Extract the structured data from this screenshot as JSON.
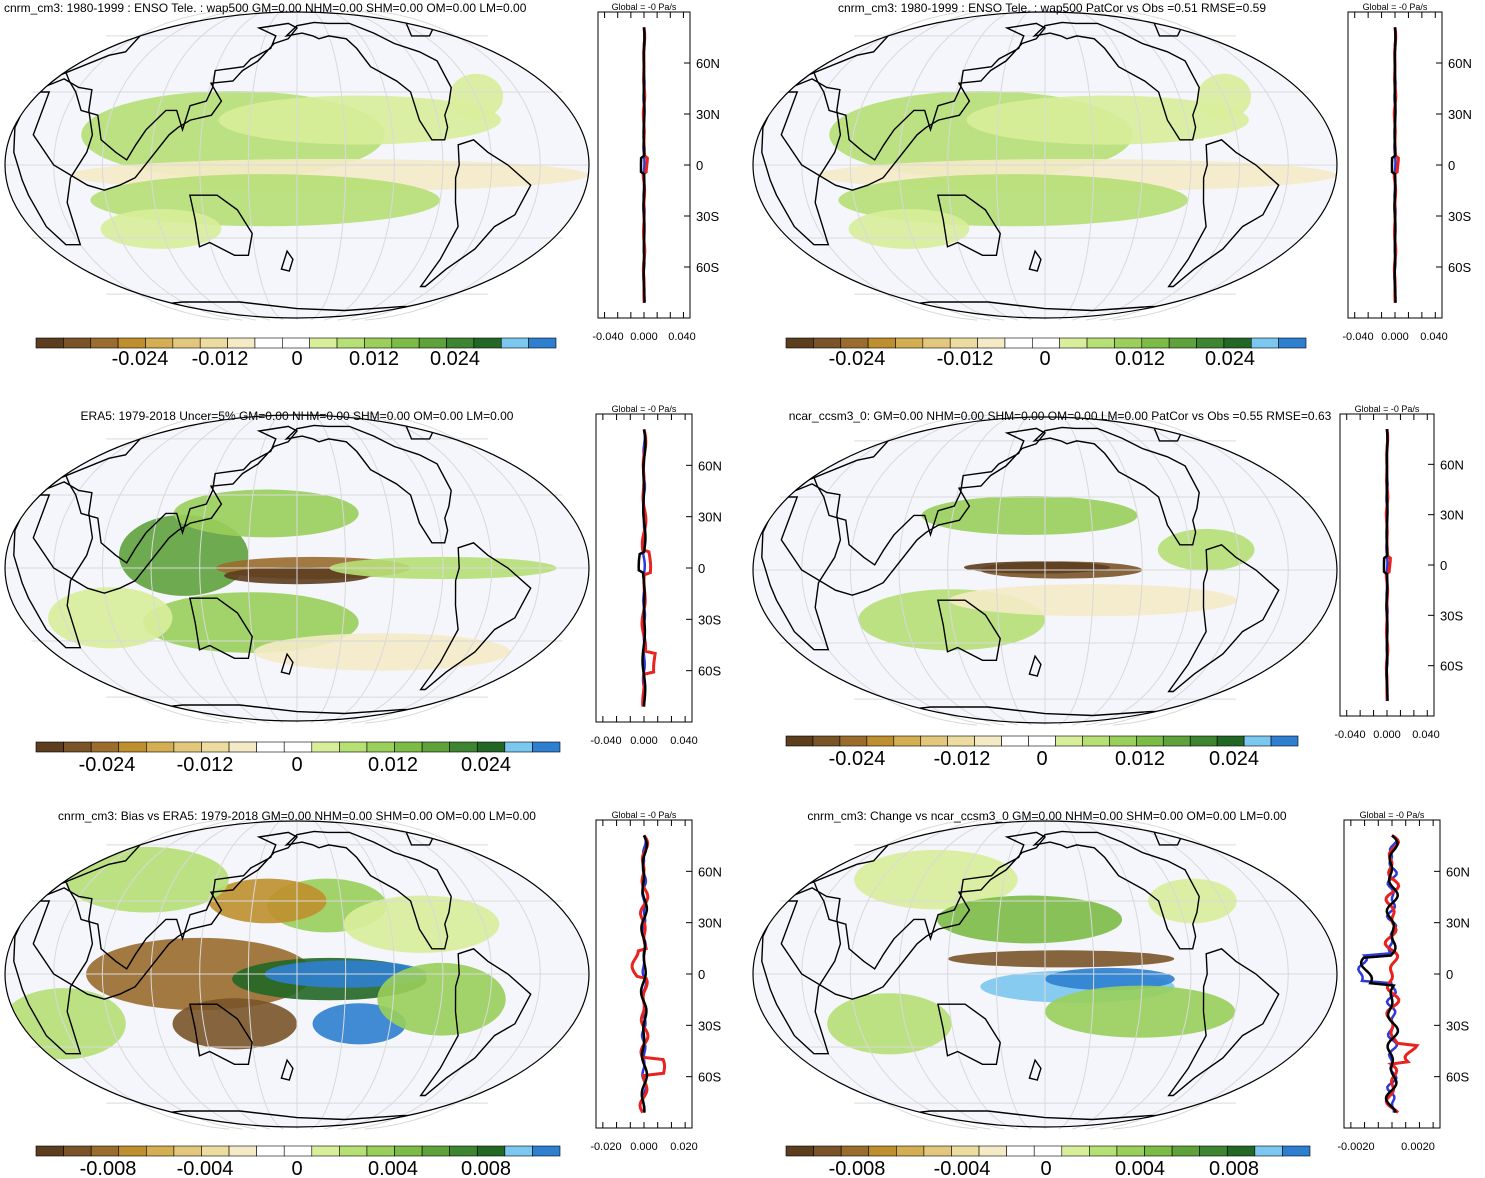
{
  "colormaps": {
    "colors": [
      "#5c3d1e",
      "#7a5428",
      "#9a6c2e",
      "#be8f2e",
      "#d4ae52",
      "#e3c77d",
      "#ecdca0",
      "#f4ebc6",
      "#ffffff",
      "#ffffff",
      "#d8ee9a",
      "#b6df76",
      "#99cf5a",
      "#7cbb46",
      "#5fa23c",
      "#3e8532",
      "#226726",
      "#7cc7f0",
      "#2e7fd0"
    ],
    "ocean": "#f5f6fb",
    "grid": "#d9d9d9",
    "coast": "#000000"
  },
  "panels": [
    {
      "title": "cnrm_cm3: 1980-1999 : ENSO Tele. : wap500 GM=0.00 NHM=0.00 SHM=0.00 OM=0.00 LM=0.00",
      "colorbar_ticks": [
        "-0.024",
        "-0.012",
        "0",
        "0.012",
        "0.024"
      ],
      "profile": {
        "header": "Global = -0 Pa/s",
        "xticks": [
          "-0.040",
          "0.000",
          "0.040"
        ],
        "lat_labels": [
          "60N",
          "30N",
          "0",
          "30S",
          "60S"
        ],
        "style": "flat"
      }
    },
    {
      "title": "cnrm_cm3: 1980-1999 : ENSO Tele. : wap500 PatCor vs Obs =0.51 RMSE=0.59",
      "colorbar_ticks": [
        "-0.024",
        "-0.012",
        "0",
        "0.012",
        "0.024"
      ],
      "profile": {
        "header": "Global = -0 Pa/s",
        "xticks": [
          "-0.040",
          "0.000",
          "0.040"
        ],
        "lat_labels": [
          "60N",
          "30N",
          "0",
          "30S",
          "60S"
        ],
        "style": "flat"
      }
    },
    {
      "title": "ERA5: 1979-2018 Uncer=5% GM=0.00 NHM=0.00 SHM=0.00 OM=0.00 LM=0.00",
      "colorbar_ticks": [
        "-0.024",
        "-0.012",
        "0",
        "0.012",
        "0.024"
      ],
      "profile": {
        "header": "Global = -0 Pa/s",
        "xticks": [
          "-0.040",
          "0.000",
          "0.040"
        ],
        "lat_labels": [
          "60N",
          "30N",
          "0",
          "30S",
          "60S"
        ],
        "style": "mild"
      }
    },
    {
      "title": "ncar_ccsm3_0: GM=0.00 NHM=0.00 SHM=0.00 OM=0.00 LM=0.00 PatCor vs Obs =0.55 RMSE=0.63",
      "colorbar_ticks": [
        "-0.024",
        "-0.012",
        "0",
        "0.012",
        "0.024"
      ],
      "profile": {
        "header": "Global = -0 Pa/s",
        "xticks": [
          "-0.040",
          "0.000",
          "0.040"
        ],
        "lat_labels": [
          "60N",
          "30N",
          "0",
          "30S",
          "60S"
        ],
        "style": "flat"
      }
    },
    {
      "title": "cnrm_cm3: Bias vs ERA5: 1979-2018 GM=0.00 NHM=0.00 SHM=0.00 OM=0.00 LM=0.00",
      "colorbar_ticks": [
        "-0.008",
        "-0.004",
        "0",
        "0.004",
        "0.008"
      ],
      "profile": {
        "header": "Global = -0 Pa/s",
        "xticks": [
          "-0.020",
          "0.000",
          "0.020"
        ],
        "lat_labels": [
          "60N",
          "30N",
          "0",
          "30S",
          "60S"
        ],
        "style": "bias"
      }
    },
    {
      "title": "cnrm_cm3: Change vs ncar_ccsm3_0 GM=0.00 NHM=0.00 SHM=0.00 OM=0.00 LM=0.00",
      "colorbar_ticks": [
        "-0.008",
        "-0.004",
        "0",
        "0.004",
        "0.008"
      ],
      "profile": {
        "header": "Global = -0 Pa/s",
        "xticks": [
          "-0.0020",
          "0.0020"
        ],
        "lat_labels": [
          "60N",
          "30N",
          "0",
          "30S",
          "60S"
        ],
        "style": "noisy"
      }
    }
  ]
}
